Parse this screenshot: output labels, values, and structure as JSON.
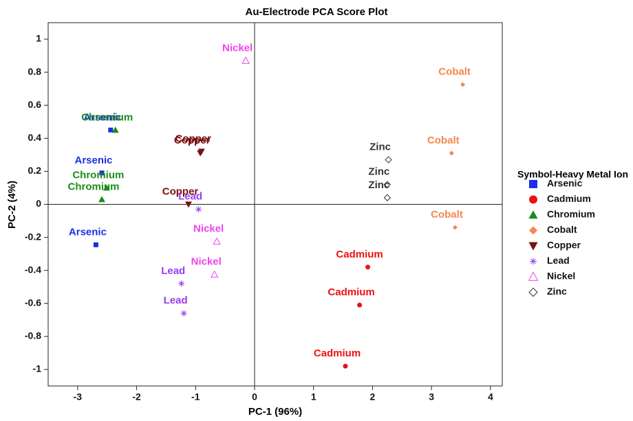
{
  "chart_data": {
    "type": "scatter",
    "title": "Au-Electrode PCA Score Plot",
    "x_label": "PC-1 (96%)",
    "y_label": "PC-2 (4%)",
    "legend_title": "Symbol-Heavy Metal Ion",
    "xlim": [
      -3.5,
      4.2
    ],
    "ylim": [
      -1.1,
      1.1
    ],
    "xticks": [
      -3,
      -2,
      -1,
      0,
      1,
      2,
      3,
      4
    ],
    "yticks": [
      -1,
      -0.8,
      -0.6,
      -0.4,
      -0.2,
      0,
      0.2,
      0.4,
      0.6,
      0.8,
      1
    ],
    "series": [
      {
        "name": "Arsenic",
        "color": "#1c2ee6",
        "marker": "square",
        "x": [
          -2.44,
          -2.59,
          -2.69
        ],
        "values": [
          0.45,
          0.19,
          -0.245
        ]
      },
      {
        "name": "Cadmium",
        "color": "#ee1111",
        "marker": "circle",
        "x": [
          1.92,
          1.78,
          1.54
        ],
        "values": [
          -0.38,
          -0.61,
          -0.98
        ]
      },
      {
        "name": "Chromium",
        "color": "#1a8c1a",
        "marker": "triangle",
        "x": [
          -2.36,
          -2.51,
          -2.59
        ],
        "values": [
          0.45,
          0.1,
          0.03
        ]
      },
      {
        "name": "Cobalt",
        "color": "#f4884c",
        "marker": "diamond",
        "x": [
          3.53,
          3.34,
          3.4
        ],
        "values": [
          0.725,
          0.31,
          -0.14
        ]
      },
      {
        "name": "Copper",
        "color": "#7a1010",
        "marker": "triangle-down",
        "x": [
          -0.92,
          -0.9,
          -1.12
        ],
        "values": [
          0.31,
          0.32,
          0.0
        ]
      },
      {
        "name": "Lead",
        "color": "#9a3cf0",
        "marker": "star",
        "x": [
          -0.95,
          -1.24,
          -1.2
        ],
        "values": [
          -0.03,
          -0.48,
          -0.66
        ]
      },
      {
        "name": "Nickel",
        "color": "#ee44ee",
        "marker": "triangle-open",
        "x": [
          -0.15,
          -0.64,
          -0.68
        ],
        "values": [
          0.87,
          -0.225,
          -0.425
        ]
      },
      {
        "name": "Zinc",
        "color": "#333333",
        "marker": "diamond-open",
        "x": [
          2.27,
          2.25,
          2.25
        ],
        "values": [
          0.27,
          0.12,
          0.04
        ]
      }
    ]
  }
}
